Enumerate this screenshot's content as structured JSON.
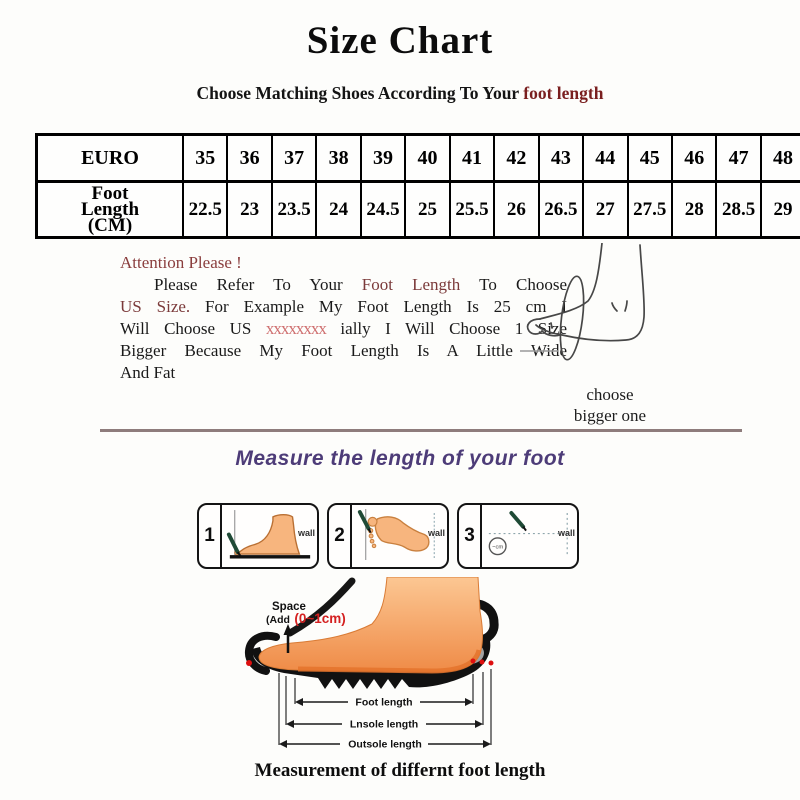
{
  "title": "Size Chart",
  "subtitle": {
    "text": "Choose Matching Shoes According To Your ",
    "highlight": "foot length"
  },
  "chart_data": {
    "type": "table",
    "title": "Size Chart",
    "rows": [
      {
        "label": "EURO",
        "values": [
          "35",
          "36",
          "37",
          "38",
          "39",
          "40",
          "41",
          "42",
          "43",
          "44",
          "45",
          "46",
          "47",
          "48"
        ]
      },
      {
        "label": "Foot Length (CM)",
        "values": [
          "22.5",
          "23",
          "23.5",
          "24",
          "24.5",
          "25",
          "25.5",
          "26",
          "26.5",
          "27",
          "27.5",
          "28",
          "28.5",
          "29"
        ]
      }
    ]
  },
  "size_table_display": {
    "row2_label_lines": [
      "Foot",
      "Length",
      "(CM)"
    ]
  },
  "attention": {
    "heading": "Attention Please !",
    "lines": [
      {
        "first": true,
        "segments": [
          {
            "text": "Please Refer To Your ",
            "color": "black"
          },
          {
            "text": "Foot Length",
            "color": "maroon"
          },
          {
            "text": " To Choose",
            "color": "black"
          }
        ]
      },
      {
        "segments": [
          {
            "text": "US Size.",
            "color": "maroon"
          },
          {
            "text": " For Example My Foot Length Is 25 cm I",
            "color": "black"
          }
        ]
      },
      {
        "segments": [
          {
            "text": "Will Choose US ",
            "color": "black"
          },
          {
            "text": "xxxxxxxx",
            "color": "red"
          },
          {
            "text": " ially I Will Choose 1 Size",
            "color": "black"
          }
        ]
      },
      {
        "segments": [
          {
            "text": "Bigger Because My Foot Length Is A Little Wide",
            "color": "black"
          }
        ]
      },
      {
        "last": true,
        "segments": [
          {
            "text": "And Fat",
            "color": "black"
          }
        ]
      }
    ],
    "callout_line1": "choose",
    "callout_line2": "bigger one"
  },
  "measure_section": {
    "heading": "Measure the length of your foot",
    "steps": [
      {
        "number": "1",
        "wall_label": "wall"
      },
      {
        "number": "2",
        "wall_label": "wall"
      },
      {
        "number": "3",
        "wall_label": "wall",
        "circle_label": "~cm"
      }
    ]
  },
  "diagram": {
    "space_label": "Space",
    "add_label": "(Add",
    "add_value": "(0~1cm)",
    "arrow_labels": [
      "Foot length",
      "Lnsole length",
      "Outsole length"
    ],
    "caption": "Measurement of differnt foot length"
  },
  "colors": {
    "subtitle_highlight": "#7a1f1f",
    "attention_heading": "#8a3d3d",
    "attention_maroon": "#7b3a3a",
    "censored_red": "#cf7070",
    "measure_heading_purple": "#4d3c78",
    "divider": "#8e7c7c",
    "diagram_value_red": "#d42020",
    "foot_orange": "#f2a060",
    "pen_green": "#1f4a36",
    "sole_black": "#111111",
    "insole_gray": "#a2a2a2",
    "dot_red": "#dd0f0f"
  }
}
